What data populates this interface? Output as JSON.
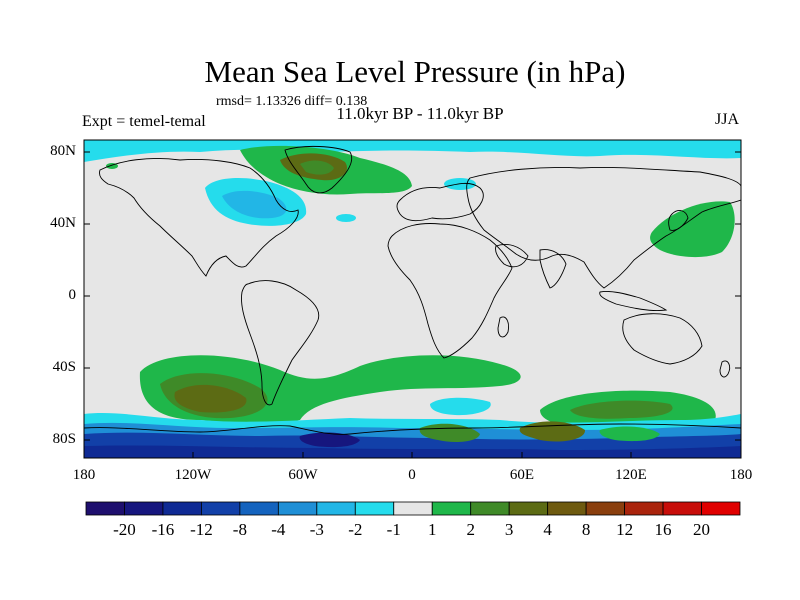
{
  "title": "Mean Sea Level Pressure (in hPa)",
  "stats": "rmsd= 1.13326 diff= 0.138",
  "subtitle": "11.0kyr BP - 11.0kyr BP",
  "left_label": "Expt = temel-temal",
  "right_label": "JJA",
  "lat_labels": [
    "80N",
    "40N",
    "0",
    "40S",
    "80S"
  ],
  "lon_labels": [
    "180",
    "120W",
    "60W",
    "0",
    "60E",
    "120E",
    "180"
  ],
  "colorbar": {
    "labels": [
      "-20",
      "-16",
      "-12",
      "-8",
      "-4",
      "-3",
      "-2",
      "-1",
      "1",
      "2",
      "3",
      "4",
      "8",
      "12",
      "16",
      "20"
    ],
    "colors": [
      "#1e0f6e",
      "#16167e",
      "#0f2a94",
      "#1240a8",
      "#1463be",
      "#1f8fd6",
      "#22b6e6",
      "#25dcec",
      "#e6e6e6",
      "#1fb74a",
      "#3f8a28",
      "#5c6b14",
      "#6e5a10",
      "#8a3f0e",
      "#aa240c",
      "#c80e0a",
      "#e00000"
    ]
  }
}
